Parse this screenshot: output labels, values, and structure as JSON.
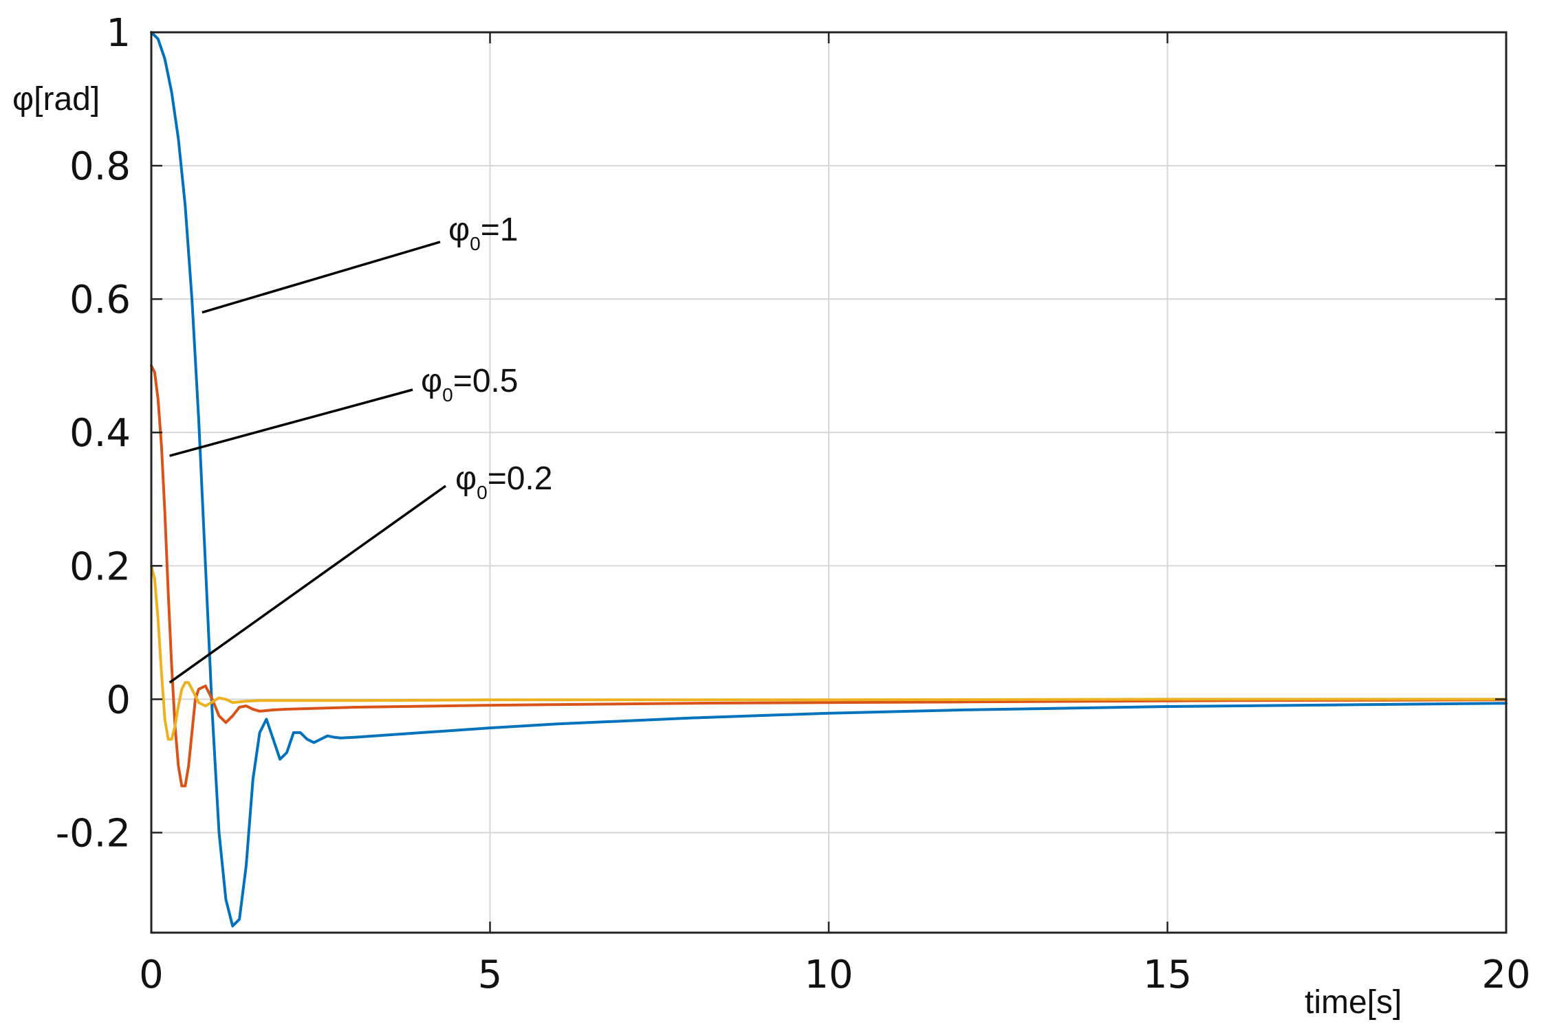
{
  "chart_data": {
    "type": "line",
    "title": "",
    "xlabel": "time[s]",
    "ylabel": "φ[rad]",
    "xlim": [
      0,
      20
    ],
    "ylim": [
      -0.35,
      1
    ],
    "grid": true,
    "x_ticks": [
      {
        "value": 0,
        "label": "0"
      },
      {
        "value": 5,
        "label": "5"
      },
      {
        "value": 10,
        "label": "10"
      },
      {
        "value": 15,
        "label": "15"
      },
      {
        "value": 20,
        "label": "20"
      }
    ],
    "y_ticks": [
      {
        "value": -0.2,
        "label": "-0.2"
      },
      {
        "value": 0,
        "label": "0"
      },
      {
        "value": 0.2,
        "label": "0.2"
      },
      {
        "value": 0.4,
        "label": "0.4"
      },
      {
        "value": 0.6,
        "label": "0.6"
      },
      {
        "value": 0.8,
        "label": "0.8"
      },
      {
        "value": 1,
        "label": "1"
      }
    ],
    "series": [
      {
        "color": "#0072bd",
        "x": [
          0,
          0.1,
          0.2,
          0.3,
          0.4,
          0.5,
          0.6,
          0.7,
          0.8,
          0.9,
          1.0,
          1.1,
          1.2,
          1.3,
          1.4,
          1.5,
          1.6,
          1.7,
          1.8,
          1.9,
          2.0,
          2.1,
          2.2,
          2.3,
          2.4,
          2.5,
          2.6,
          2.7,
          2.8,
          3.0,
          4,
          5,
          6,
          8,
          10,
          12,
          15,
          18,
          20
        ],
        "y": [
          1.0,
          0.99,
          0.96,
          0.91,
          0.84,
          0.74,
          0.6,
          0.42,
          0.2,
          -0.02,
          -0.2,
          -0.3,
          -0.34,
          -0.33,
          -0.25,
          -0.12,
          -0.05,
          -0.03,
          -0.06,
          -0.09,
          -0.08,
          -0.05,
          -0.05,
          -0.06,
          -0.065,
          -0.06,
          -0.055,
          -0.057,
          -0.058,
          -0.057,
          -0.05,
          -0.043,
          -0.037,
          -0.028,
          -0.021,
          -0.016,
          -0.011,
          -0.008,
          -0.006
        ]
      },
      {
        "color": "#d95319",
        "x": [
          0,
          0.05,
          0.1,
          0.15,
          0.2,
          0.25,
          0.3,
          0.35,
          0.4,
          0.45,
          0.5,
          0.55,
          0.6,
          0.65,
          0.7,
          0.8,
          0.9,
          1.0,
          1.1,
          1.2,
          1.3,
          1.4,
          1.5,
          1.6,
          1.8,
          2.0,
          2.3,
          3,
          5,
          8,
          12,
          16,
          20
        ],
        "y": [
          0.5,
          0.49,
          0.45,
          0.38,
          0.28,
          0.16,
          0.05,
          -0.04,
          -0.1,
          -0.13,
          -0.13,
          -0.1,
          -0.05,
          0.0,
          0.015,
          0.02,
          0.0,
          -0.025,
          -0.035,
          -0.025,
          -0.012,
          -0.01,
          -0.015,
          -0.018,
          -0.016,
          -0.015,
          -0.014,
          -0.012,
          -0.009,
          -0.006,
          -0.004,
          -0.002,
          -0.001
        ]
      },
      {
        "color": "#edb120",
        "x": [
          0,
          0.05,
          0.1,
          0.15,
          0.2,
          0.25,
          0.3,
          0.35,
          0.4,
          0.45,
          0.5,
          0.55,
          0.6,
          0.7,
          0.8,
          0.9,
          1.0,
          1.1,
          1.2,
          1.4,
          1.6,
          2.0,
          3,
          5,
          10,
          15,
          20
        ],
        "y": [
          0.2,
          0.18,
          0.12,
          0.04,
          -0.03,
          -0.06,
          -0.06,
          -0.04,
          -0.01,
          0.015,
          0.025,
          0.025,
          0.015,
          -0.005,
          -0.01,
          -0.004,
          0.002,
          0.0,
          -0.005,
          -0.003,
          -0.002,
          -0.002,
          -0.002,
          -0.001,
          -0.001,
          0.0,
          0.0
        ]
      }
    ],
    "annotations": [
      {
        "symbol": "φ",
        "sub": "0",
        "text": "=1",
        "anchor": [
          0.75,
          0.58
        ]
      },
      {
        "symbol": "φ",
        "sub": "0",
        "text": "=0.5",
        "anchor": [
          0.27,
          0.365
        ]
      },
      {
        "symbol": "φ",
        "sub": "0",
        "text": "=0.2",
        "anchor": [
          0.27,
          0.025
        ]
      }
    ]
  }
}
